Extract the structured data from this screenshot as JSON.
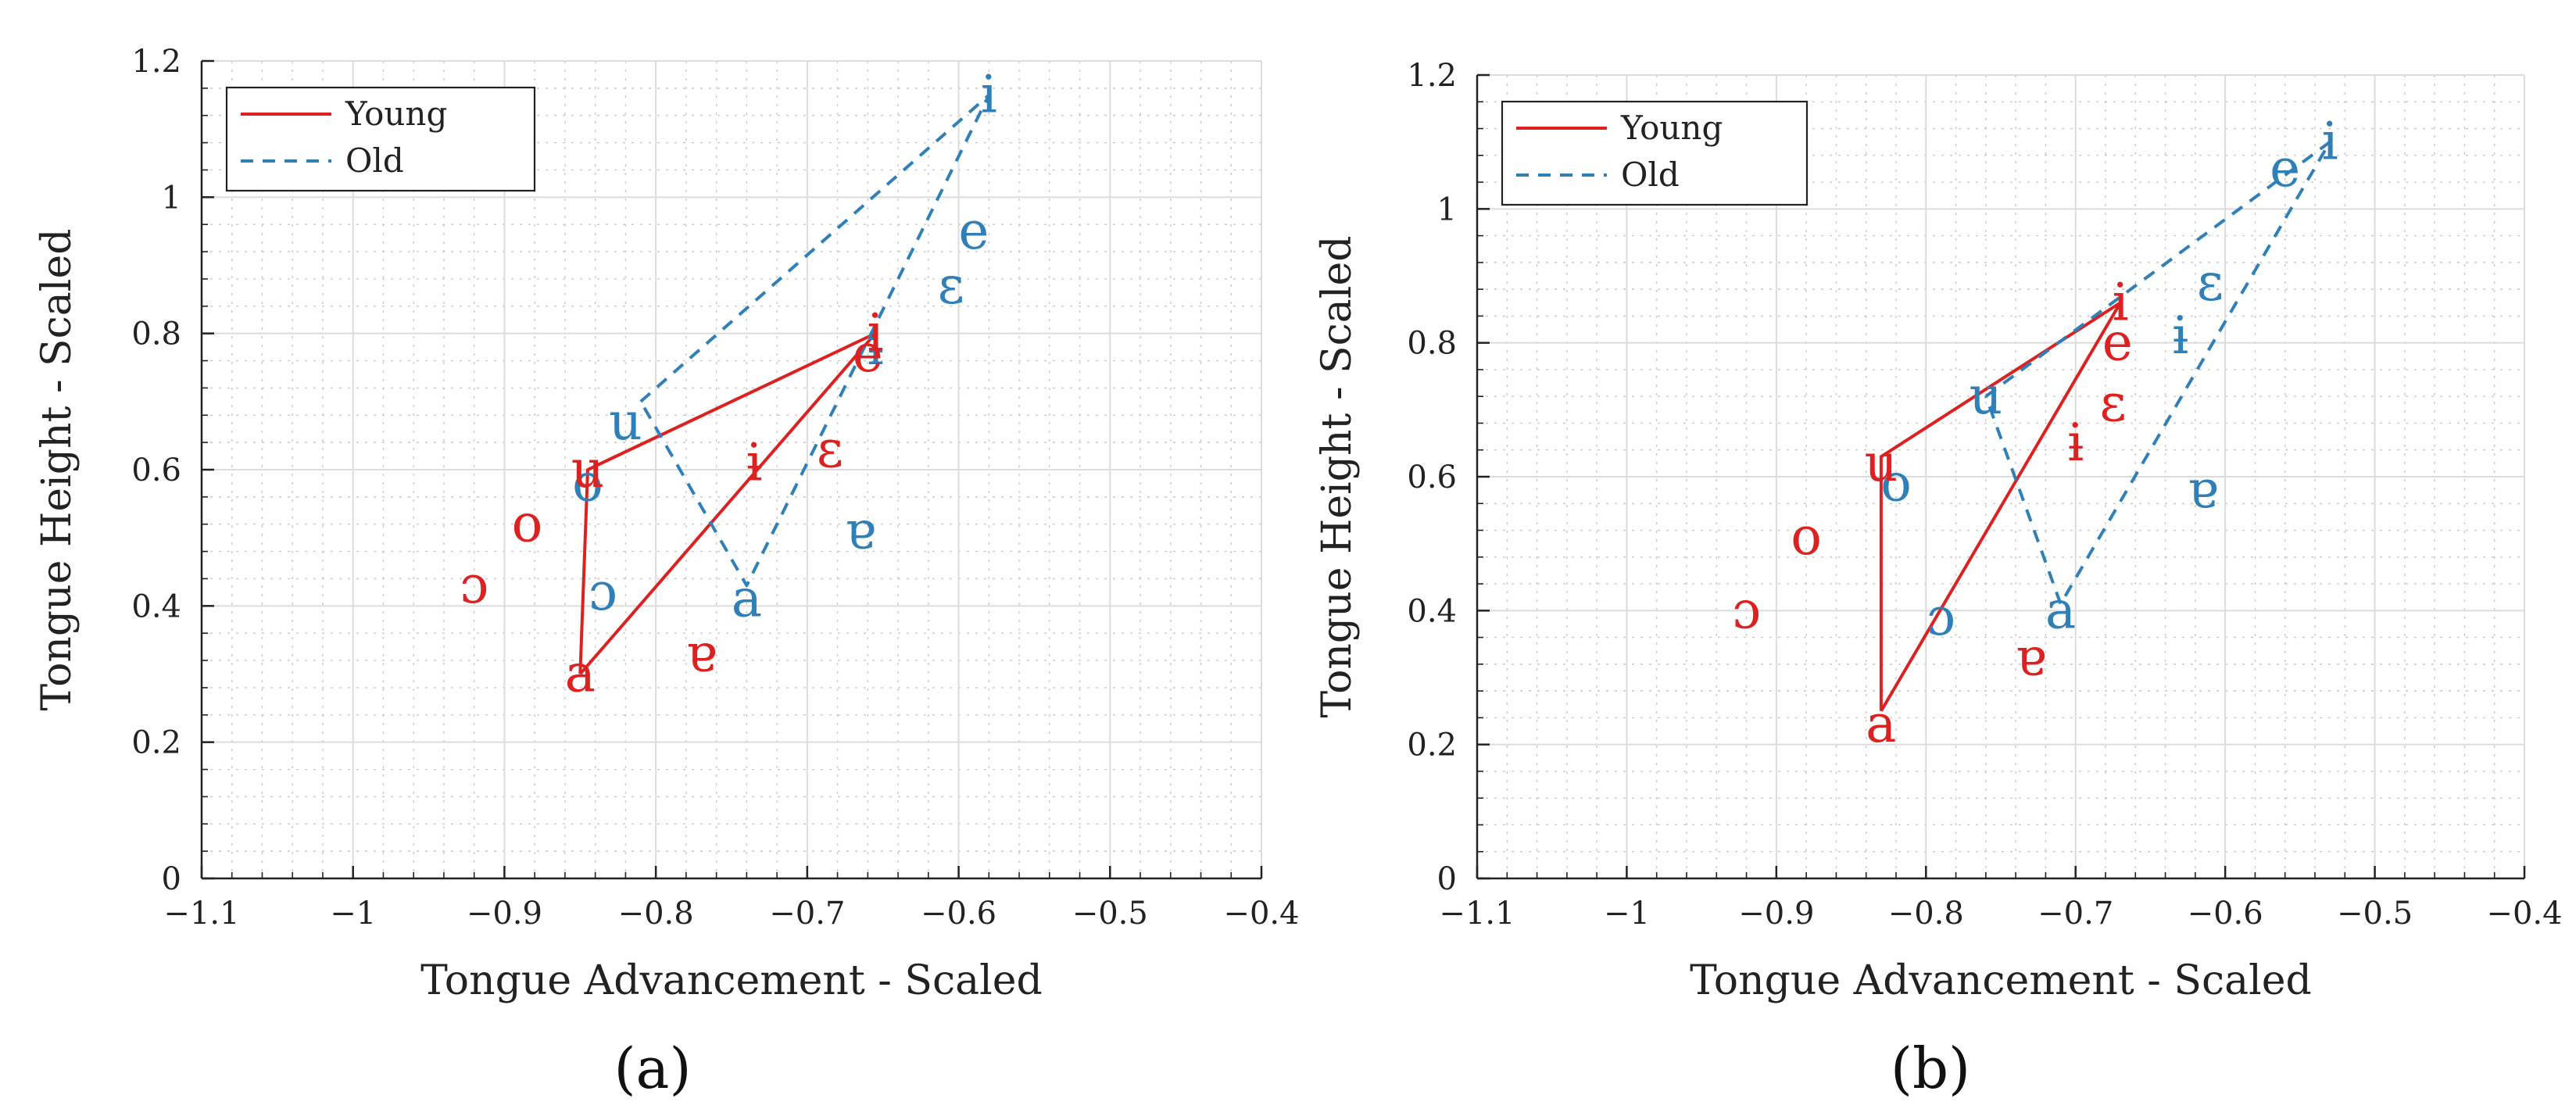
{
  "colors": {
    "young": "#dd2020",
    "old": "#2f7fb8",
    "grid": "#dcdcdc",
    "axis": "#222222"
  },
  "chart_data": [
    {
      "type": "line",
      "panel_label": "(a)",
      "xlabel": "Tongue Advancement - Scaled",
      "ylabel": "Tongue Height - Scaled",
      "xlim": [
        -1.1,
        -0.4
      ],
      "ylim": [
        0,
        1.2
      ],
      "xticks": [
        -1.1,
        -1.0,
        -0.9,
        -0.8,
        -0.7,
        -0.6,
        -0.5,
        -0.4
      ],
      "yticks": [
        0,
        0.2,
        0.4,
        0.6,
        0.8,
        1.0,
        1.2
      ],
      "xtick_labels": [
        "−1.1",
        "−1",
        "−0.9",
        "−0.8",
        "−0.7",
        "−0.6",
        "−0.5",
        "−0.4"
      ],
      "ytick_labels": [
        "0",
        "0.2",
        "0.4",
        "0.6",
        "0.8",
        "1",
        "1.2"
      ],
      "grid": true,
      "legend": {
        "placement": "top-left",
        "entries": [
          "Young",
          "Old"
        ]
      },
      "series": [
        {
          "name": "Young",
          "style": "solid",
          "color": "#dd2020",
          "polygon": [
            [
              -0.85,
              0.3
            ],
            [
              -0.845,
              0.6
            ],
            [
              -0.655,
              0.8
            ],
            [
              -0.85,
              0.3
            ]
          ],
          "points": [
            {
              "label": "a",
              "x": -0.85,
              "y": 0.3
            },
            {
              "label": "u",
              "x": -0.845,
              "y": 0.6
            },
            {
              "label": "i",
              "x": -0.655,
              "y": 0.8
            },
            {
              "label": "e",
              "x": -0.66,
              "y": 0.77
            },
            {
              "label": "ɛ",
              "x": -0.685,
              "y": 0.63
            },
            {
              "label": "ɨ",
              "x": -0.735,
              "y": 0.61
            },
            {
              "label": "o",
              "x": -0.885,
              "y": 0.52
            },
            {
              "label": "ɔ",
              "x": -0.92,
              "y": 0.43
            },
            {
              "label": "ɐ",
              "x": -0.77,
              "y": 0.33
            }
          ]
        },
        {
          "name": "Old",
          "style": "dashed",
          "color": "#2f7fb8",
          "polygon": [
            [
              -0.81,
              0.7
            ],
            [
              -0.58,
              1.15
            ],
            [
              -0.74,
              0.43
            ],
            [
              -0.81,
              0.7
            ]
          ],
          "points": [
            {
              "label": "u",
              "x": -0.82,
              "y": 0.67
            },
            {
              "label": "i",
              "x": -0.58,
              "y": 1.15
            },
            {
              "label": "e",
              "x": -0.59,
              "y": 0.95
            },
            {
              "label": "ɛ",
              "x": -0.605,
              "y": 0.87
            },
            {
              "label": "ɨ",
              "x": -0.655,
              "y": 0.78
            },
            {
              "label": "o",
              "x": -0.845,
              "y": 0.58
            },
            {
              "label": "ɔ",
              "x": -0.835,
              "y": 0.42
            },
            {
              "label": "a",
              "x": -0.74,
              "y": 0.41
            },
            {
              "label": "ɐ",
              "x": -0.665,
              "y": 0.51
            }
          ]
        }
      ]
    },
    {
      "type": "line",
      "panel_label": "(b)",
      "xlabel": "Tongue Advancement - Scaled",
      "ylabel": "Tongue Height - Scaled",
      "xlim": [
        -1.1,
        -0.4
      ],
      "ylim": [
        0,
        1.2
      ],
      "xticks": [
        -1.1,
        -1.0,
        -0.9,
        -0.8,
        -0.7,
        -0.6,
        -0.5,
        -0.4
      ],
      "yticks": [
        0,
        0.2,
        0.4,
        0.6,
        0.8,
        1.0,
        1.2
      ],
      "xtick_labels": [
        "−1.1",
        "−1",
        "−0.9",
        "−0.8",
        "−0.7",
        "−0.6",
        "−0.5",
        "−0.4"
      ],
      "ytick_labels": [
        "0",
        "0.2",
        "0.4",
        "0.6",
        "0.8",
        "1",
        "1.2"
      ],
      "grid": true,
      "legend": {
        "placement": "top-left",
        "entries": [
          "Young",
          "Old"
        ]
      },
      "series": [
        {
          "name": "Young",
          "style": "solid",
          "color": "#dd2020",
          "polygon": [
            [
              -0.83,
              0.25
            ],
            [
              -0.83,
              0.63
            ],
            [
              -0.67,
              0.86
            ],
            [
              -0.83,
              0.25
            ]
          ],
          "points": [
            {
              "label": "a",
              "x": -0.83,
              "y": 0.23
            },
            {
              "label": "u",
              "x": -0.83,
              "y": 0.62
            },
            {
              "label": "i",
              "x": -0.67,
              "y": 0.86
            },
            {
              "label": "e",
              "x": -0.672,
              "y": 0.8
            },
            {
              "label": "ɛ",
              "x": -0.675,
              "y": 0.71
            },
            {
              "label": "ɨ",
              "x": -0.7,
              "y": 0.65
            },
            {
              "label": "o",
              "x": -0.88,
              "y": 0.51
            },
            {
              "label": "ɔ",
              "x": -0.92,
              "y": 0.4
            },
            {
              "label": "ɐ",
              "x": -0.73,
              "y": 0.33
            }
          ]
        },
        {
          "name": "Old",
          "style": "dashed",
          "color": "#2f7fb8",
          "polygon": [
            [
              -0.76,
              0.72
            ],
            [
              -0.53,
              1.1
            ],
            [
              -0.71,
              0.41
            ],
            [
              -0.76,
              0.72
            ]
          ],
          "points": [
            {
              "label": "u",
              "x": -0.76,
              "y": 0.72
            },
            {
              "label": "i",
              "x": -0.53,
              "y": 1.1
            },
            {
              "label": "e",
              "x": -0.56,
              "y": 1.06
            },
            {
              "label": "ɛ",
              "x": -0.61,
              "y": 0.89
            },
            {
              "label": "ɨ",
              "x": -0.63,
              "y": 0.81
            },
            {
              "label": "o",
              "x": -0.82,
              "y": 0.59
            },
            {
              "label": "ɔ",
              "x": -0.79,
              "y": 0.39
            },
            {
              "label": "a",
              "x": -0.71,
              "y": 0.4
            },
            {
              "label": "ɐ",
              "x": -0.615,
              "y": 0.58
            }
          ]
        }
      ]
    }
  ]
}
